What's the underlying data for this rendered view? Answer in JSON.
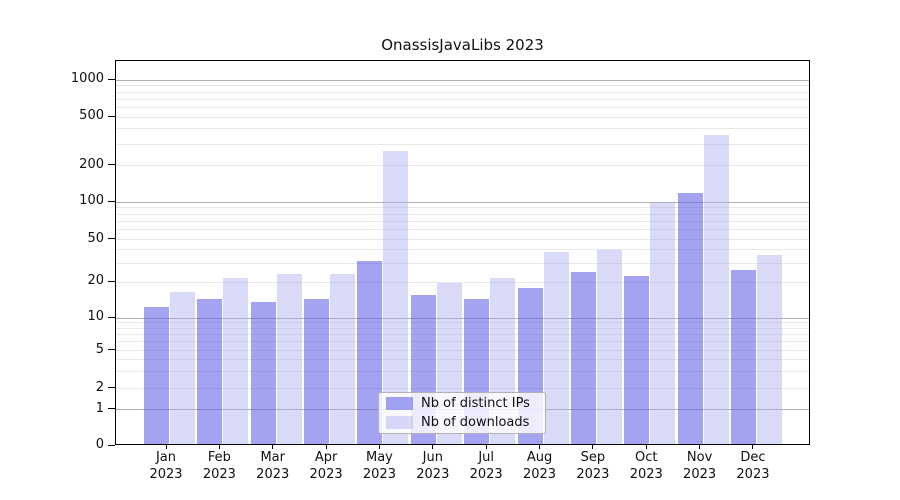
{
  "title": "OnassisJavaLibs 2023",
  "chart_data": {
    "type": "bar",
    "title": "OnassisJavaLibs 2023",
    "y_scale": "log-with-zero",
    "y_ticks": [
      1000,
      500,
      200,
      100,
      50,
      20,
      10,
      5,
      2,
      1,
      0
    ],
    "ylim": [
      0,
      1450
    ],
    "grid": true,
    "legend_position": "bottom-center",
    "categories": [
      "Jan",
      "Feb",
      "Mar",
      "Apr",
      "May",
      "Jun",
      "Jul",
      "Aug",
      "Sep",
      "Oct",
      "Nov",
      "Dec"
    ],
    "year_label": "2023",
    "series": [
      {
        "name": "Nb of distinct IPs",
        "hex": "#a6a6f2",
        "fill": "rgba(102,102,234,0.6)",
        "values": [
          12,
          14,
          13,
          14,
          30,
          15,
          14,
          17,
          24,
          22,
          115,
          25
        ]
      },
      {
        "name": "Nb of downloads",
        "hex": "#d9d9f6",
        "fill": "rgba(170,170,240,0.45)",
        "values": [
          16,
          21,
          23,
          23,
          255,
          19,
          21,
          37,
          38,
          96,
          345,
          34
        ]
      }
    ]
  },
  "colors": {
    "major_grid": "#b0b0b0",
    "minor_grid": "#e7e7e7",
    "axis": "#000000",
    "text": "#111111"
  }
}
